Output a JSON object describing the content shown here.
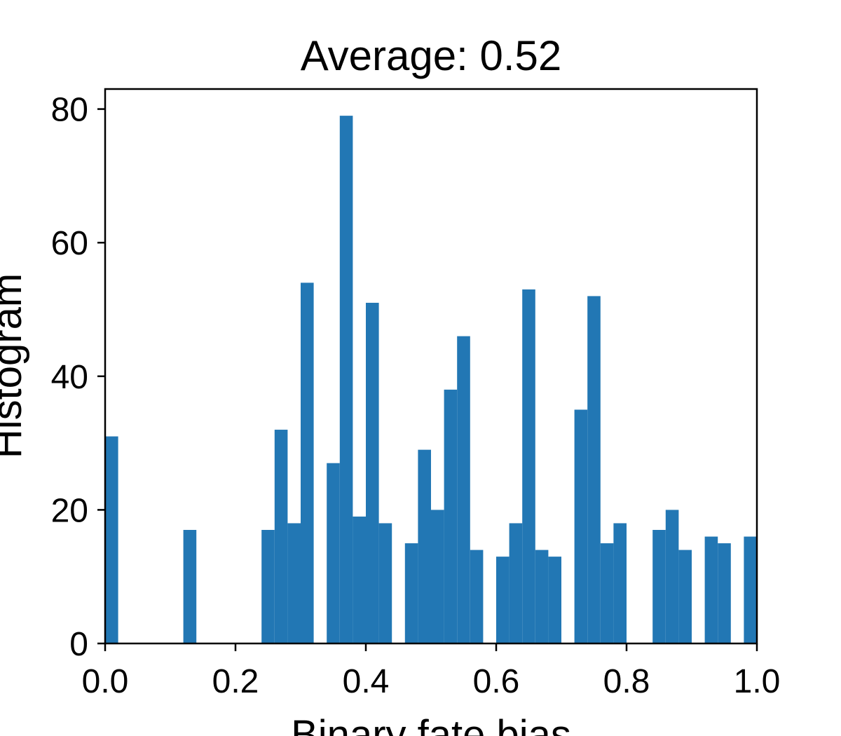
{
  "chart_data": {
    "type": "bar",
    "title": "Average: 0.52",
    "xlabel": "Binary fate bias",
    "ylabel": "Histogram",
    "xlim": [
      0.0,
      1.0
    ],
    "ylim": [
      0,
      83
    ],
    "bin_width": 0.02,
    "xticks": [
      0.0,
      0.2,
      0.4,
      0.6,
      0.8,
      1.0
    ],
    "xtick_labels": [
      "0.0",
      "0.2",
      "0.4",
      "0.6",
      "0.8",
      "1.0"
    ],
    "yticks": [
      0,
      20,
      40,
      60,
      80
    ],
    "ytick_labels": [
      "0",
      "20",
      "40",
      "60",
      "80"
    ],
    "grid": false,
    "bars": [
      {
        "x": 0.0,
        "count": 31
      },
      {
        "x": 0.12,
        "count": 17
      },
      {
        "x": 0.24,
        "count": 17
      },
      {
        "x": 0.26,
        "count": 32
      },
      {
        "x": 0.28,
        "count": 18
      },
      {
        "x": 0.3,
        "count": 54
      },
      {
        "x": 0.34,
        "count": 27
      },
      {
        "x": 0.36,
        "count": 79
      },
      {
        "x": 0.38,
        "count": 19
      },
      {
        "x": 0.4,
        "count": 51
      },
      {
        "x": 0.42,
        "count": 18
      },
      {
        "x": 0.46,
        "count": 15
      },
      {
        "x": 0.48,
        "count": 29
      },
      {
        "x": 0.5,
        "count": 20
      },
      {
        "x": 0.52,
        "count": 38
      },
      {
        "x": 0.54,
        "count": 46
      },
      {
        "x": 0.56,
        "count": 14
      },
      {
        "x": 0.6,
        "count": 13
      },
      {
        "x": 0.62,
        "count": 18
      },
      {
        "x": 0.64,
        "count": 53
      },
      {
        "x": 0.66,
        "count": 14
      },
      {
        "x": 0.68,
        "count": 13
      },
      {
        "x": 0.72,
        "count": 35
      },
      {
        "x": 0.74,
        "count": 52
      },
      {
        "x": 0.76,
        "count": 15
      },
      {
        "x": 0.78,
        "count": 18
      },
      {
        "x": 0.84,
        "count": 17
      },
      {
        "x": 0.86,
        "count": 20
      },
      {
        "x": 0.88,
        "count": 14
      },
      {
        "x": 0.92,
        "count": 16
      },
      {
        "x": 0.94,
        "count": 15
      },
      {
        "x": 0.98,
        "count": 16
      }
    ],
    "colors": {
      "bar": "#2277b4",
      "axes": "#000000",
      "background": "#ffffff"
    }
  }
}
